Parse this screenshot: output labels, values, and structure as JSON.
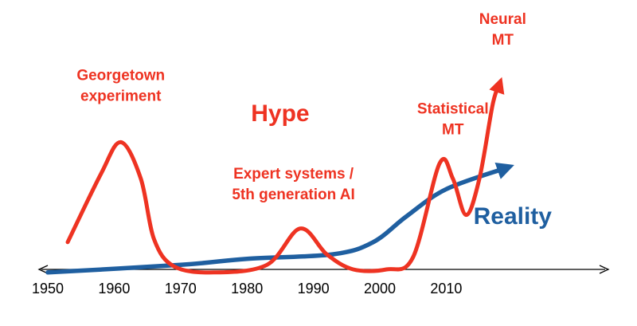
{
  "chart_data": {
    "type": "line",
    "title": "",
    "xlabel": "",
    "ylabel": "",
    "xlim": [
      1950,
      2020
    ],
    "x_ticks": [
      "1950",
      "1960",
      "1970",
      "1980",
      "1990",
      "2000",
      "2010"
    ],
    "y_axis_shown": false,
    "grid": false,
    "colors": {
      "hype": "#ee3322",
      "reality": "#1f5fa0",
      "axis": "#000000"
    },
    "series": [
      {
        "name": "Hype",
        "style": "curve",
        "points": [
          [
            1953,
            0.18
          ],
          [
            1958,
            0.63
          ],
          [
            1961,
            0.84
          ],
          [
            1964,
            0.6
          ],
          [
            1966,
            0.2
          ],
          [
            1969,
            0.02
          ],
          [
            1975,
            -0.02
          ],
          [
            1983,
            0.03
          ],
          [
            1988,
            0.27
          ],
          [
            1992,
            0.1
          ],
          [
            1996,
            0.0
          ],
          [
            2001,
            0.0
          ],
          [
            2005,
            0.08
          ],
          [
            2009,
            0.7
          ],
          [
            2011,
            0.6
          ],
          [
            2013,
            0.36
          ],
          [
            2015,
            0.6
          ],
          [
            2017,
            1.09
          ],
          [
            2018,
            1.22
          ]
        ],
        "arrow_end": true
      },
      {
        "name": "Reality",
        "style": "curve",
        "points": [
          [
            1950,
            -0.02
          ],
          [
            1970,
            0.03
          ],
          [
            1980,
            0.07
          ],
          [
            1993,
            0.1
          ],
          [
            1999,
            0.18
          ],
          [
            2004,
            0.35
          ],
          [
            2010,
            0.53
          ],
          [
            2019,
            0.67
          ]
        ],
        "arrow_end": true
      }
    ],
    "annotations": [
      {
        "id": "georgetown",
        "lines": [
          "Georgetown",
          "experiment"
        ],
        "x": 1961,
        "y": 1.25,
        "color": "#ee3322",
        "size": "mid"
      },
      {
        "id": "hype-label",
        "lines": [
          "Hype"
        ],
        "x": 1985,
        "y": 0.98,
        "color": "#ee3322",
        "size": "big"
      },
      {
        "id": "expert-systems",
        "lines": [
          "Expert systems /",
          "5th generation AI"
        ],
        "x": 1987,
        "y": 0.6,
        "color": "#ee3322",
        "size": "mid"
      },
      {
        "id": "statistical-mt",
        "lines": [
          "Statistical",
          "MT"
        ],
        "x": 2011,
        "y": 1.03,
        "color": "#ee3322",
        "size": "mid"
      },
      {
        "id": "neural-mt",
        "lines": [
          "Neural",
          "MT"
        ],
        "x": 2018.5,
        "y": 1.62,
        "color": "#ee3322",
        "size": "mid"
      },
      {
        "id": "reality-label",
        "lines": [
          "Reality"
        ],
        "x": 2020,
        "y": 0.3,
        "color": "#1f5fa0",
        "size": "big"
      }
    ]
  }
}
